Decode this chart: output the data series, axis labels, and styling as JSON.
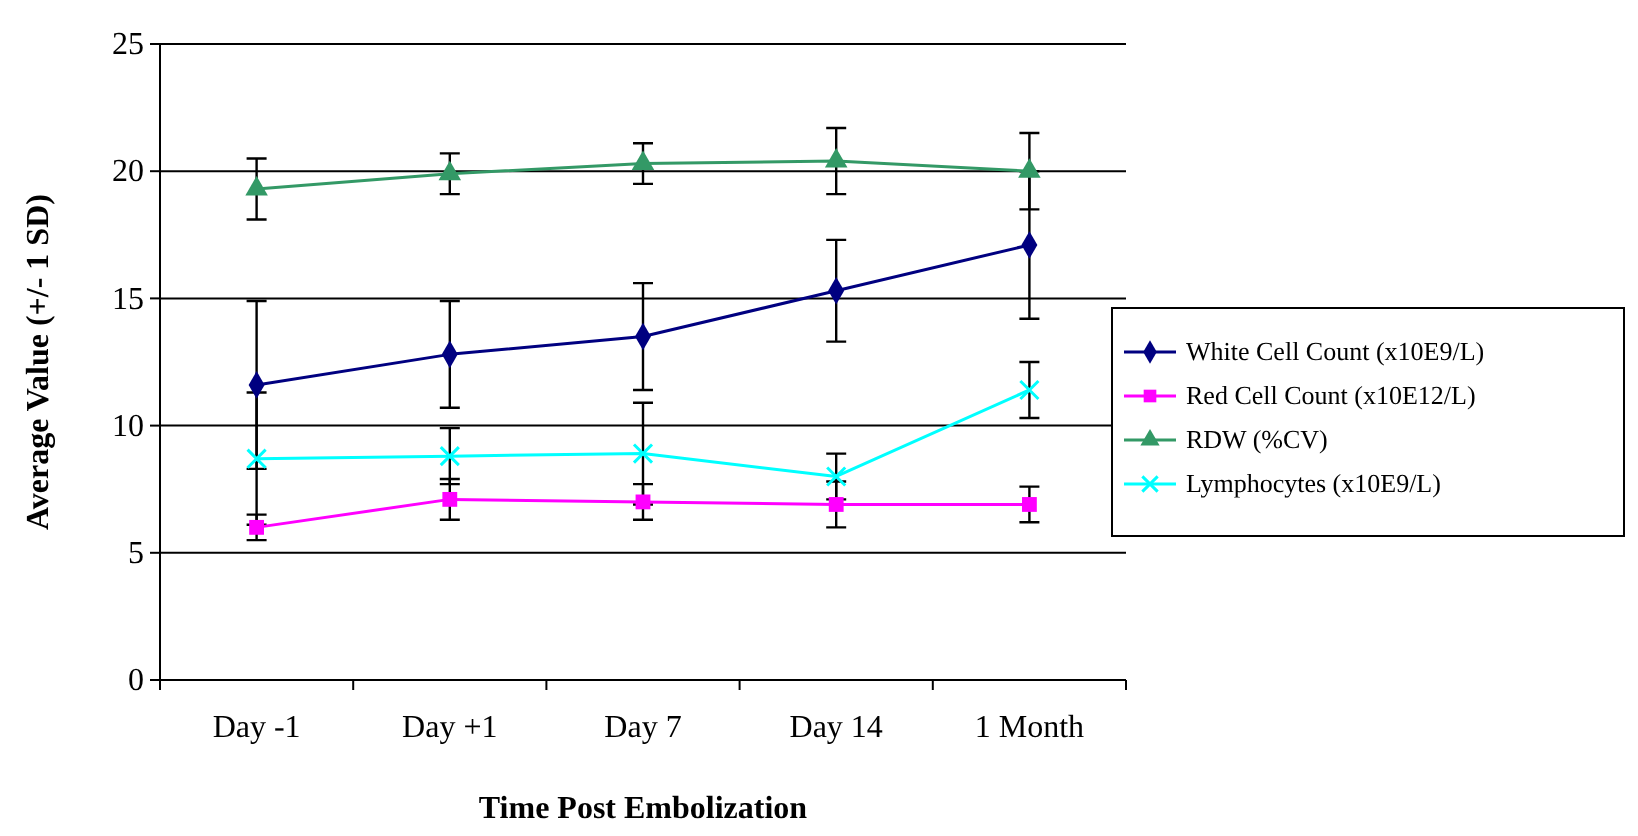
{
  "chart_data": {
    "type": "line",
    "xlabel": "Time Post Embolization",
    "ylabel": "Average Value (+/- 1 SD)",
    "categories": [
      "Day -1",
      "Day +1",
      "Day 7",
      "Day 14",
      "1 Month"
    ],
    "ylim": [
      0,
      25
    ],
    "yticks": [
      0,
      5,
      10,
      15,
      20,
      25
    ],
    "grid": "y",
    "legend": "right",
    "series": [
      {
        "name": "White Cell Count (x10E9/L)",
        "color": "#000080",
        "marker": "diamond",
        "values": [
          11.6,
          12.8,
          13.5,
          15.3,
          17.1
        ],
        "errors": [
          3.3,
          2.1,
          2.1,
          2.0,
          2.9
        ]
      },
      {
        "name": "Red Cell Count (x10E12/L)",
        "color": "#ff00ff",
        "marker": "square",
        "values": [
          6.0,
          7.1,
          7.0,
          6.9,
          6.9
        ],
        "errors": [
          0.5,
          0.8,
          0.7,
          0.9,
          0.7
        ]
      },
      {
        "name": "RDW (%CV)",
        "color": "#339966",
        "marker": "triangle",
        "values": [
          19.3,
          19.9,
          20.3,
          20.4,
          20.0
        ],
        "errors": [
          1.2,
          0.8,
          0.8,
          1.3,
          1.5
        ]
      },
      {
        "name": "Lymphocytes (x10E9/L)",
        "color": "#00ffff",
        "marker": "cross",
        "values": [
          8.7,
          8.8,
          8.9,
          8.0,
          11.4
        ],
        "errors": [
          2.6,
          1.1,
          2.0,
          0.9,
          1.1
        ]
      }
    ]
  }
}
